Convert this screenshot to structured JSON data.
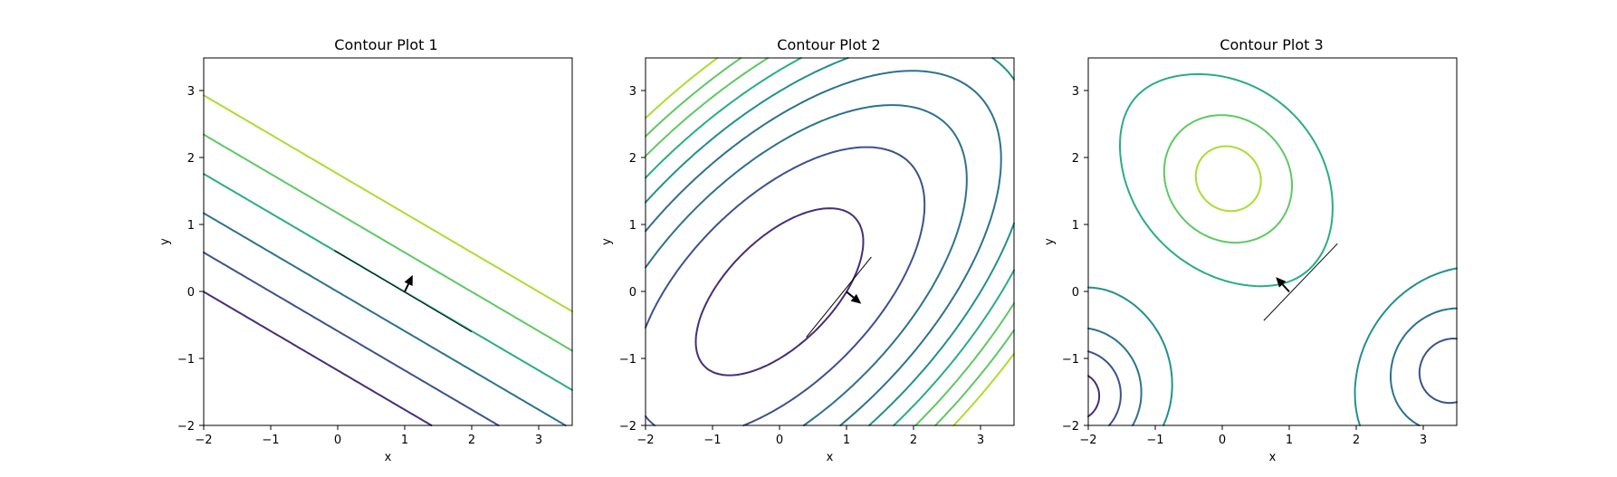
{
  "chart_data": [
    {
      "type": "contour",
      "title": "Contour Plot 1",
      "xlabel": "x",
      "ylabel": "y",
      "xlim": [
        -2,
        3.5
      ],
      "ylim": [
        -2,
        3.5
      ],
      "xticks": [
        -2,
        -1,
        0,
        1,
        2,
        3
      ],
      "yticks": [
        -2,
        -1,
        0,
        1,
        2,
        3
      ],
      "xtick_labels": [
        "−2",
        "−1",
        "0",
        "1",
        "2",
        "3"
      ],
      "ytick_labels": [
        "−2",
        "−1",
        "0",
        "1",
        "2",
        "3"
      ],
      "field": "linear",
      "levels": [
        -2,
        -1,
        0,
        1,
        2,
        3
      ],
      "colors": [
        "#472d7b",
        "#3b528b",
        "#2c728e",
        "#21918c",
        "#28ae80",
        "#5ec962",
        "#addc30"
      ],
      "tangent_line": [
        [
          -0.05,
          0.62
        ],
        [
          2.0,
          -0.6
        ]
      ],
      "gradient_arrow": {
        "from": [
          1.0,
          0.0
        ],
        "to": [
          1.12,
          0.25
        ]
      }
    },
    {
      "type": "contour",
      "title": "Contour Plot 2",
      "xlabel": "x",
      "ylabel": "y",
      "xlim": [
        -2,
        3.5
      ],
      "ylim": [
        -2,
        3.5
      ],
      "xticks": [
        -2,
        -1,
        0,
        1,
        2,
        3
      ],
      "yticks": [
        -2,
        -1,
        0,
        1,
        2,
        3
      ],
      "xtick_labels": [
        "−2",
        "−1",
        "0",
        "1",
        "2",
        "3"
      ],
      "ytick_labels": [
        "−2",
        "−1",
        "0",
        "1",
        "2",
        "3"
      ],
      "field": "quadratic",
      "levels": [
        1,
        3,
        5,
        7,
        9,
        11,
        13,
        15,
        17
      ],
      "colors": [
        "#472d7b",
        "#3b528b",
        "#2c728e",
        "#21918c",
        "#28ae80",
        "#5ec962",
        "#addc30"
      ],
      "tangent_line": [
        [
          0.4,
          -0.68
        ],
        [
          1.37,
          0.52
        ]
      ],
      "gradient_arrow": {
        "from": [
          1.0,
          0.0
        ],
        "to": [
          1.22,
          -0.18
        ]
      }
    },
    {
      "type": "contour",
      "title": "Contour Plot 3",
      "xlabel": "x",
      "ylabel": "y",
      "xlim": [
        -2,
        3.5
      ],
      "ylim": [
        -2,
        3.5
      ],
      "xticks": [
        -2,
        -1,
        0,
        1,
        2,
        3
      ],
      "yticks": [
        -2,
        -1,
        0,
        1,
        2,
        3
      ],
      "xtick_labels": [
        "−2",
        "−1",
        "0",
        "1",
        "2",
        "3"
      ],
      "ytick_labels": [
        "−2",
        "−1",
        "0",
        "1",
        "2",
        "3"
      ],
      "field": "bumps",
      "levels": [
        -3.5,
        -2.5,
        -1.5,
        -0.5,
        0.5,
        1.5,
        2.5
      ],
      "colors": [
        "#472d7b",
        "#3b528b",
        "#2c728e",
        "#21918c",
        "#28ae80",
        "#5ec962",
        "#addc30"
      ],
      "tangent_line": [
        [
          0.62,
          -0.43
        ],
        [
          1.72,
          0.72
        ]
      ],
      "gradient_arrow": {
        "from": [
          1.0,
          0.0
        ],
        "to": [
          0.8,
          0.22
        ]
      }
    }
  ]
}
